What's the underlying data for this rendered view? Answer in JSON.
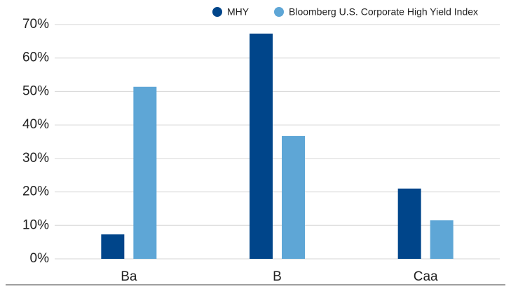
{
  "chart_data": {
    "type": "bar",
    "categories": [
      "Ba",
      "B",
      "Caa"
    ],
    "series": [
      {
        "name": "MHY",
        "color": "#00458a",
        "values": [
          7.3,
          67.3,
          21
        ]
      },
      {
        "name": "Bloomberg U.S. Corporate High Yield Index",
        "color": "#5ea6d6",
        "values": [
          51.4,
          36.7,
          11.5
        ]
      }
    ],
    "ylim": [
      0,
      70
    ],
    "yticks": [
      {
        "value": 0,
        "label": "0%"
      },
      {
        "value": 10,
        "label": "10%"
      },
      {
        "value": 20,
        "label": "20%"
      },
      {
        "value": 30,
        "label": "30%"
      },
      {
        "value": 40,
        "label": "40%"
      },
      {
        "value": 50,
        "label": "50%"
      },
      {
        "value": 60,
        "label": "60%"
      },
      {
        "value": 70,
        "label": "70%"
      }
    ],
    "grid": true,
    "legend": "top-right"
  }
}
